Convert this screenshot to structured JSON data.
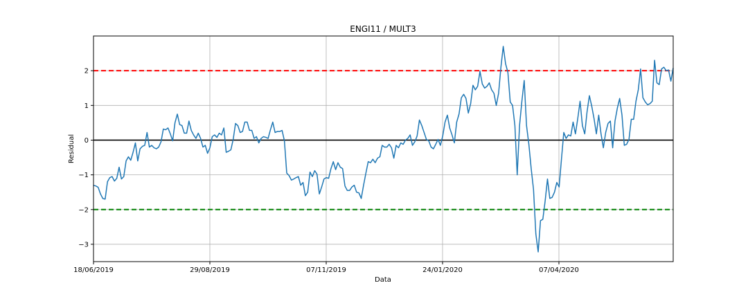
{
  "chart_data": {
    "type": "line",
    "title": "ENGI11 / MULT3",
    "xlabel": "Data",
    "ylabel": "Residual",
    "ylim": [
      -3.5,
      3.0
    ],
    "yticks": [
      -3,
      -2,
      -1,
      0,
      1,
      2
    ],
    "ytick_labels": [
      "−3",
      "−2",
      "−1",
      "0",
      "1",
      "2"
    ],
    "xticks": [
      "18/06/2019",
      "29/08/2019",
      "07/11/2019",
      "24/01/2020",
      "07/04/2020"
    ],
    "grid": true,
    "reference_lines": [
      {
        "y": 2,
        "color": "#ff0000",
        "style": "dashed"
      },
      {
        "y": 0,
        "color": "#000000",
        "style": "solid"
      },
      {
        "y": -2,
        "color": "#008000",
        "style": "dashed"
      }
    ],
    "line_color": "#1f77b4",
    "series": [
      {
        "values": [
          -1.3,
          -1.32,
          -1.36,
          -1.55,
          -1.68,
          -1.7,
          -1.2,
          -1.08,
          -1.05,
          -1.18,
          -1.1,
          -0.78,
          -1.12,
          -1.05,
          -0.6,
          -0.48,
          -0.58,
          -0.35,
          -0.08,
          -0.6,
          -0.25,
          -0.18,
          -0.15,
          0.22,
          -0.2,
          -0.15,
          -0.22,
          -0.25,
          -0.2,
          -0.05,
          0.32,
          0.3,
          0.35,
          0.18,
          -0.02,
          0.5,
          0.75,
          0.45,
          0.42,
          0.2,
          0.2,
          0.55,
          0.28,
          0.15,
          0.05,
          0.2,
          0.05,
          -0.2,
          -0.15,
          -0.38,
          -0.22,
          0.1,
          0.15,
          0.08,
          0.2,
          0.15,
          0.35,
          -0.35,
          -0.32,
          -0.28,
          0.02,
          0.48,
          0.42,
          0.22,
          0.25,
          0.52,
          0.52,
          0.28,
          0.28,
          0.05,
          0.1,
          -0.08,
          0.05,
          0.1,
          0.08,
          0.05,
          0.3,
          0.52,
          0.22,
          0.25,
          0.25,
          0.28,
          -0.02,
          -0.95,
          -1.02,
          -1.15,
          -1.12,
          -1.08,
          -1.05,
          -1.3,
          -1.22,
          -1.6,
          -1.5,
          -0.92,
          -1.05,
          -0.88,
          -0.98,
          -1.55,
          -1.35,
          -1.12,
          -1.08,
          -1.1,
          -0.82,
          -0.62,
          -0.85,
          -0.65,
          -0.78,
          -0.82,
          -1.32,
          -1.45,
          -1.45,
          -1.35,
          -1.3,
          -1.5,
          -1.52,
          -1.68,
          -1.3,
          -0.95,
          -0.62,
          -0.65,
          -0.55,
          -0.65,
          -0.52,
          -0.48,
          -0.15,
          -0.2,
          -0.2,
          -0.12,
          -0.22,
          -0.52,
          -0.15,
          -0.22,
          -0.08,
          -0.12,
          0.0,
          0.05,
          0.15,
          -0.15,
          -0.05,
          0.12,
          0.58,
          0.42,
          0.22,
          0.02,
          -0.02,
          -0.2,
          -0.25,
          -0.12,
          0.02,
          -0.15,
          0.12,
          0.52,
          0.72,
          0.35,
          0.15,
          -0.08,
          0.52,
          0.75,
          1.22,
          1.32,
          1.2,
          0.78,
          1.05,
          1.58,
          1.45,
          1.55,
          1.98,
          1.62,
          1.5,
          1.55,
          1.65,
          1.45,
          1.35,
          1.0,
          1.35,
          2.1,
          2.7,
          2.2,
          1.95,
          1.1,
          1.0,
          0.42,
          -1.0,
          0.42,
          1.12,
          1.72,
          0.42,
          -0.12,
          -0.82,
          -1.42,
          -2.7,
          -3.22,
          -2.32,
          -2.28,
          -1.75,
          -1.12,
          -1.68,
          -1.65,
          -1.5,
          -1.22,
          -1.35,
          -0.55,
          0.22,
          0.05,
          0.15,
          0.12,
          0.52,
          0.18,
          0.62,
          1.12,
          0.42,
          0.18,
          0.82,
          1.28,
          0.98,
          0.62,
          0.18,
          0.72,
          0.18,
          -0.22,
          0.22,
          0.48,
          0.55,
          -0.22,
          0.55,
          0.92,
          1.2,
          0.72,
          -0.15,
          -0.12,
          0.02,
          0.6,
          0.6,
          1.12,
          1.45,
          2.05,
          1.22,
          1.1,
          1.02,
          1.05,
          1.12,
          2.3,
          1.65,
          1.6,
          2.05,
          2.1,
          2.0,
          2.02,
          1.7,
          2.08
        ]
      }
    ]
  }
}
